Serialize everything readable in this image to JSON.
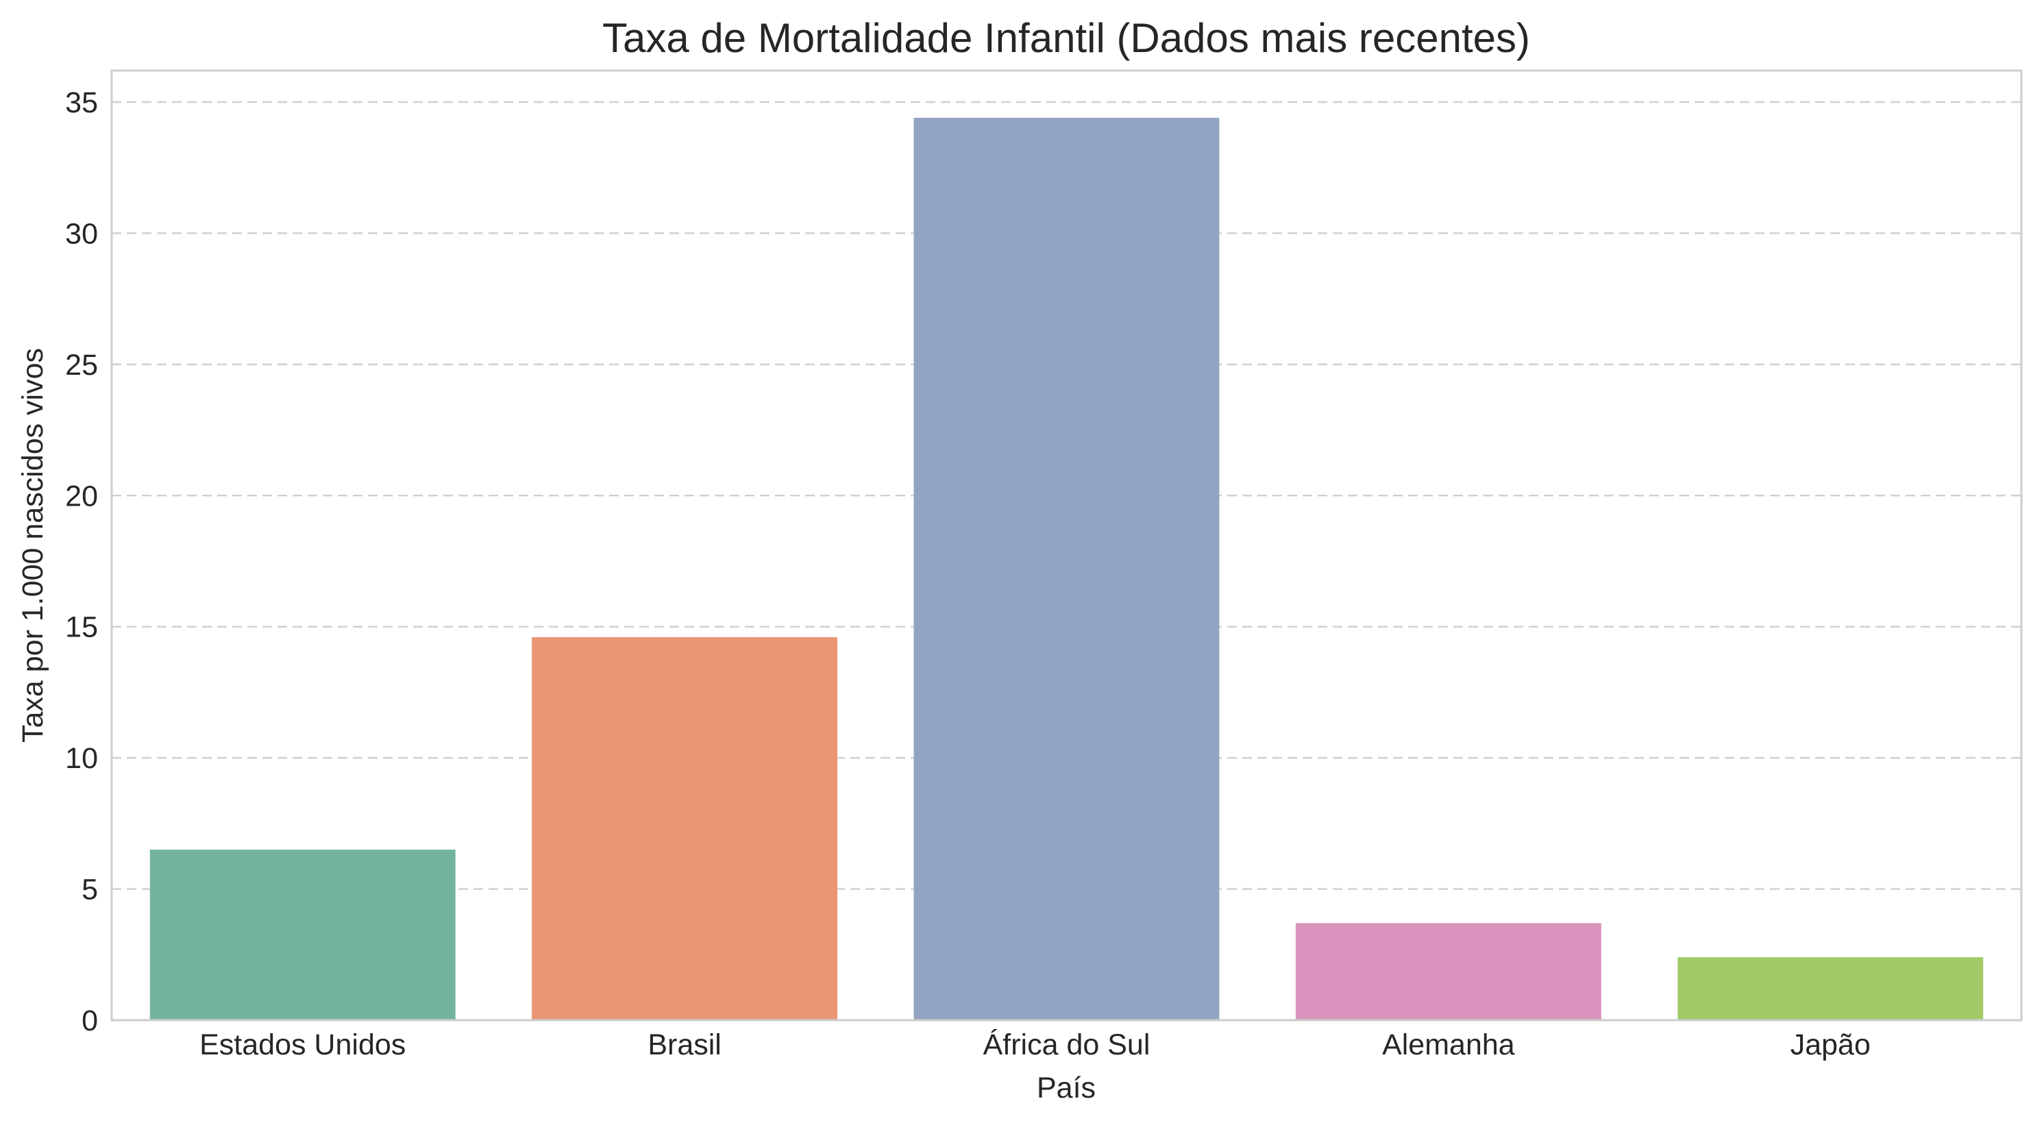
{
  "chart_data": {
    "type": "bar",
    "title": "Taxa de Mortalidade Infantil (Dados mais recentes)",
    "xlabel": "País",
    "ylabel": "Taxa por 1.000 nascidos vivos",
    "categories": [
      "Estados Unidos",
      "Brasil",
      "África do Sul",
      "Alemanha",
      "Japão"
    ],
    "values": [
      6.5,
      14.6,
      34.4,
      3.7,
      2.4
    ],
    "colors": [
      "#73b49e",
      "#e89675",
      "#93a3c2",
      "#db94be",
      "#a2c966"
    ],
    "ylim": [
      0,
      36.2
    ],
    "yticks": [
      0,
      5,
      10,
      15,
      20,
      25,
      30,
      35
    ],
    "grid": "horizontal-dashed",
    "legend": "none"
  }
}
